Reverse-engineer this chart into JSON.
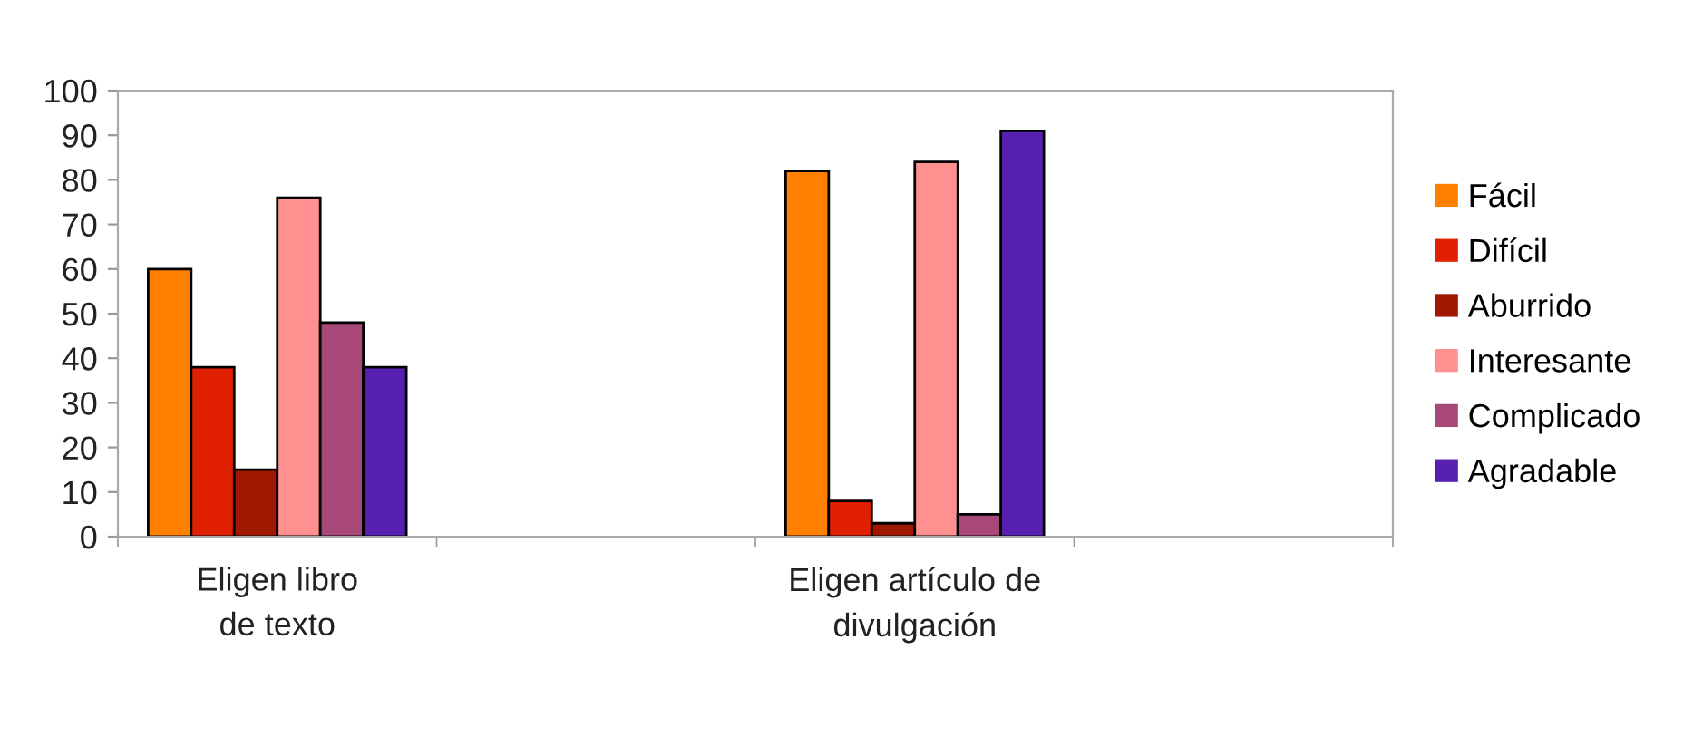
{
  "chart_data": {
    "type": "bar",
    "categories": [
      "Eligen libro de texto",
      null,
      "Eligen artículo de divulgación",
      null
    ],
    "series": [
      {
        "name": "Fácil",
        "color": "#ff8000",
        "values": [
          60,
          null,
          82,
          null
        ]
      },
      {
        "name": "Difícil",
        "color": "#e02000",
        "values": [
          38,
          null,
          8,
          null
        ]
      },
      {
        "name": "Aburrido",
        "color": "#a01800",
        "values": [
          15,
          null,
          3,
          null
        ]
      },
      {
        "name": "Interesante",
        "color": "#ff9090",
        "values": [
          76,
          null,
          84,
          null
        ]
      },
      {
        "name": "Complicado",
        "color": "#a84878",
        "values": [
          48,
          null,
          5,
          null
        ]
      },
      {
        "name": "Agradable",
        "color": "#5820b0",
        "values": [
          38,
          null,
          91,
          null
        ]
      }
    ],
    "ylim": [
      0,
      100
    ],
    "yticks": [
      0,
      10,
      20,
      30,
      40,
      50,
      60,
      70,
      80,
      90,
      100
    ],
    "grid": false,
    "legend": "right"
  }
}
